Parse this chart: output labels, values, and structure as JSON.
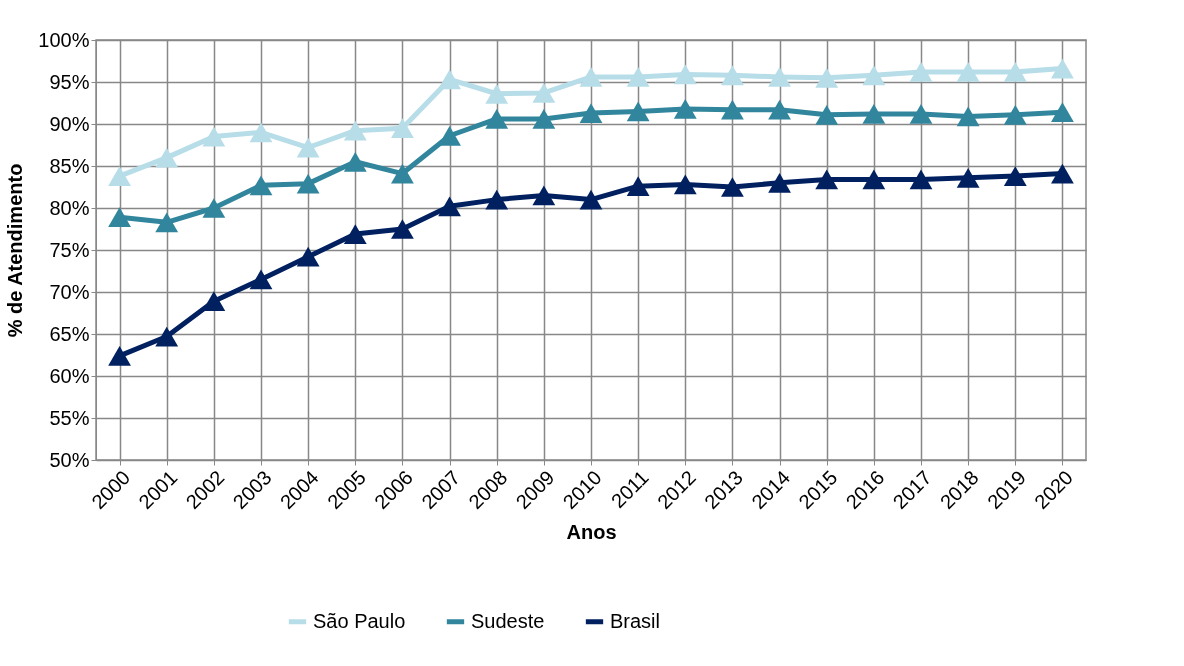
{
  "chart_data": {
    "type": "line",
    "xlabel": "Anos",
    "ylabel": "% de Atendimento",
    "categories": [
      "2000",
      "2001",
      "2002",
      "2003",
      "2004",
      "2005",
      "2006",
      "2007",
      "2008",
      "2009",
      "2010",
      "2011",
      "2012",
      "2013",
      "2014",
      "2015",
      "2016",
      "2017",
      "2018",
      "2019",
      "2020"
    ],
    "series": [
      {
        "name": "São Paulo",
        "color": "#b7dde8",
        "values": [
          83.8,
          86.0,
          88.5,
          89.0,
          87.2,
          89.2,
          89.5,
          95.3,
          93.6,
          93.7,
          95.6,
          95.6,
          95.9,
          95.8,
          95.6,
          95.5,
          95.8,
          96.2,
          96.2,
          96.2,
          96.6
        ]
      },
      {
        "name": "Sudeste",
        "color": "#31859c",
        "values": [
          78.9,
          78.3,
          80.0,
          82.7,
          82.9,
          85.5,
          84.1,
          88.6,
          90.6,
          90.6,
          91.3,
          91.5,
          91.8,
          91.7,
          91.7,
          91.1,
          91.2,
          91.2,
          90.9,
          91.1,
          91.4
        ]
      },
      {
        "name": "Brasil",
        "color": "#002060",
        "values": [
          62.4,
          64.7,
          68.9,
          71.5,
          74.2,
          76.9,
          77.5,
          80.2,
          81.0,
          81.5,
          81.0,
          82.6,
          82.8,
          82.5,
          83.0,
          83.4,
          83.4,
          83.4,
          83.6,
          83.8,
          84.1
        ]
      }
    ],
    "ylim": [
      50,
      100
    ],
    "yticks": [
      {
        "value": 50,
        "label": "50%"
      },
      {
        "value": 55,
        "label": "55%"
      },
      {
        "value": 60,
        "label": "60%"
      },
      {
        "value": 65,
        "label": "65%"
      },
      {
        "value": 70,
        "label": "70%"
      },
      {
        "value": 75,
        "label": "75%"
      },
      {
        "value": 80,
        "label": "80%"
      },
      {
        "value": 85,
        "label": "85%"
      },
      {
        "value": 90,
        "label": "90%"
      },
      {
        "value": 95,
        "label": "95%"
      },
      {
        "value": 100,
        "label": "100%"
      }
    ],
    "grid": true,
    "legend": "bottom",
    "marker": "triangle",
    "line_style": "solid"
  }
}
